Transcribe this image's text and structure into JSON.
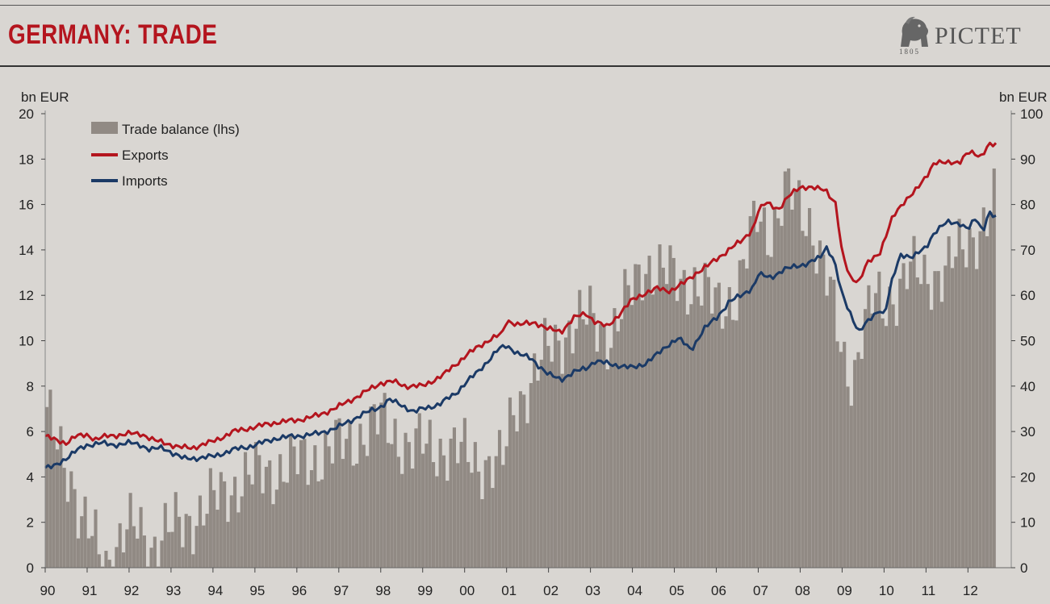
{
  "header": {
    "title": "GERMANY: TRADE",
    "logo_text": "PICTET",
    "logo_year": "1805"
  },
  "chart_data": {
    "type": "bar",
    "title": "GERMANY: TRADE",
    "ylabel_left": "bn EUR",
    "ylabel_right": "bn EUR",
    "ylim_left": [
      0,
      20
    ],
    "ylim_right": [
      0,
      100
    ],
    "yticks_left": [
      "0",
      "2",
      "4",
      "6",
      "8",
      "10",
      "12",
      "14",
      "16",
      "18",
      "20"
    ],
    "yticks_right": [
      "0",
      "10",
      "20",
      "30",
      "40",
      "50",
      "60",
      "70",
      "80",
      "90",
      "100"
    ],
    "x_tick_labels": [
      "90",
      "91",
      "92",
      "93",
      "94",
      "95",
      "96",
      "97",
      "98",
      "99",
      "00",
      "01",
      "02",
      "03",
      "04",
      "05",
      "06",
      "07",
      "08",
      "09",
      "10",
      "11",
      "12"
    ],
    "x_start_year": 1990,
    "x_end_year": 2012.667,
    "grid": false,
    "legend_position": "top-left",
    "legend": [
      {
        "label": "Trade balance (lhs)",
        "type": "bar",
        "color": "#918a84"
      },
      {
        "label": "Exports",
        "type": "line",
        "color": "#b4151e"
      },
      {
        "label": "Imports",
        "type": "line",
        "color": "#1b3a66"
      }
    ],
    "series": [
      {
        "name": "Trade balance (lhs)",
        "type": "bar",
        "axis": "left",
        "color": "#918a84",
        "frequency": "monthly",
        "anchors": [
          [
            1990.0,
            6.5
          ],
          [
            1990.3,
            5.5
          ],
          [
            1990.6,
            4.0
          ],
          [
            1990.8,
            2.0
          ],
          [
            1991.0,
            1.5
          ],
          [
            1991.2,
            1.0
          ],
          [
            1991.35,
            0.2
          ],
          [
            1991.6,
            0.8
          ],
          [
            1991.9,
            1.5
          ],
          [
            1992.2,
            1.8
          ],
          [
            1992.5,
            1.0
          ],
          [
            1992.9,
            1.6
          ],
          [
            1993.3,
            2.0
          ],
          [
            1993.8,
            2.6
          ],
          [
            1994.3,
            3.4
          ],
          [
            1994.8,
            4.0
          ],
          [
            1995.3,
            4.2
          ],
          [
            1995.8,
            4.5
          ],
          [
            1996.3,
            4.8
          ],
          [
            1996.8,
            5.2
          ],
          [
            1997.3,
            5.6
          ],
          [
            1997.8,
            6.2
          ],
          [
            1998.0,
            6.5
          ],
          [
            1998.3,
            6.0
          ],
          [
            1998.7,
            5.2
          ],
          [
            1999.0,
            5.4
          ],
          [
            1999.5,
            5.3
          ],
          [
            2000.0,
            5.0
          ],
          [
            2000.5,
            4.6
          ],
          [
            2000.9,
            4.5
          ],
          [
            2001.2,
            7.2
          ],
          [
            2001.6,
            8.2
          ],
          [
            2002.0,
            9.6
          ],
          [
            2002.5,
            10.5
          ],
          [
            2003.0,
            11.0
          ],
          [
            2003.5,
            10.2
          ],
          [
            2004.0,
            12.2
          ],
          [
            2004.3,
            13.5
          ],
          [
            2004.6,
            13.0
          ],
          [
            2005.0,
            12.8
          ],
          [
            2005.5,
            12.5
          ],
          [
            2006.0,
            11.6
          ],
          [
            2006.5,
            12.0
          ],
          [
            2007.0,
            15.5
          ],
          [
            2007.3,
            14.8
          ],
          [
            2007.7,
            16.6
          ],
          [
            2008.0,
            15.8
          ],
          [
            2008.3,
            15.2
          ],
          [
            2008.7,
            12.5
          ],
          [
            2008.9,
            10.5
          ],
          [
            2009.1,
            8.8
          ],
          [
            2009.3,
            8.5
          ],
          [
            2009.5,
            10.5
          ],
          [
            2009.8,
            11.8
          ],
          [
            2010.0,
            11.3
          ],
          [
            2010.3,
            12.2
          ],
          [
            2010.6,
            13.2
          ],
          [
            2011.0,
            12.6
          ],
          [
            2011.5,
            13.3
          ],
          [
            2011.9,
            13.8
          ],
          [
            2012.3,
            15.0
          ],
          [
            2012.667,
            16.0
          ]
        ],
        "notes": "Monthly values with month-to-month volatility around the listed trend points."
      },
      {
        "name": "Exports",
        "type": "line",
        "axis": "right",
        "color": "#b4151e",
        "points": [
          [
            1990.0,
            29.0
          ],
          [
            1990.2,
            28.2
          ],
          [
            1990.5,
            27.5
          ],
          [
            1990.7,
            28.8
          ],
          [
            1991.0,
            29.3
          ],
          [
            1991.2,
            28.3
          ],
          [
            1991.5,
            29.0
          ],
          [
            1992.0,
            29.5
          ],
          [
            1992.3,
            29.5
          ],
          [
            1992.6,
            28.0
          ],
          [
            1992.9,
            27.4
          ],
          [
            1993.2,
            26.5
          ],
          [
            1993.5,
            26.4
          ],
          [
            1994.0,
            27.8
          ],
          [
            1994.5,
            30.0
          ],
          [
            1995.0,
            31.0
          ],
          [
            1995.5,
            32.0
          ],
          [
            1996.0,
            32.5
          ],
          [
            1996.5,
            33.5
          ],
          [
            1997.0,
            35.5
          ],
          [
            1997.5,
            38.0
          ],
          [
            1998.0,
            40.7
          ],
          [
            1998.3,
            41.0
          ],
          [
            1998.6,
            40.0
          ],
          [
            1999.0,
            40.0
          ],
          [
            1999.5,
            42.5
          ],
          [
            2000.0,
            46.5
          ],
          [
            2000.3,
            48.5
          ],
          [
            2000.6,
            50.3
          ],
          [
            2000.9,
            51.5
          ],
          [
            2001.0,
            54.5
          ],
          [
            2001.3,
            53.5
          ],
          [
            2001.7,
            54.0
          ],
          [
            2002.0,
            52.5
          ],
          [
            2002.3,
            52.0
          ],
          [
            2002.6,
            55.0
          ],
          [
            2002.9,
            56.0
          ],
          [
            2003.1,
            54.3
          ],
          [
            2003.4,
            53.0
          ],
          [
            2003.7,
            56.0
          ],
          [
            2004.0,
            59.0
          ],
          [
            2004.3,
            60.5
          ],
          [
            2004.6,
            61.5
          ],
          [
            2004.9,
            61.0
          ],
          [
            2005.2,
            62.5
          ],
          [
            2005.5,
            64.8
          ],
          [
            2005.8,
            66.5
          ],
          [
            2006.0,
            68.0
          ],
          [
            2006.3,
            70.0
          ],
          [
            2006.6,
            72.0
          ],
          [
            2006.9,
            75.0
          ],
          [
            2007.0,
            78.5
          ],
          [
            2007.2,
            80.5
          ],
          [
            2007.5,
            79.0
          ],
          [
            2007.8,
            82.5
          ],
          [
            2008.0,
            84.0
          ],
          [
            2008.3,
            83.5
          ],
          [
            2008.6,
            83.5
          ],
          [
            2008.85,
            80.0
          ],
          [
            2009.0,
            69.0
          ],
          [
            2009.2,
            64.0
          ],
          [
            2009.4,
            63.0
          ],
          [
            2009.6,
            67.0
          ],
          [
            2009.9,
            69.5
          ],
          [
            2010.0,
            72.0
          ],
          [
            2010.2,
            77.0
          ],
          [
            2010.5,
            81.0
          ],
          [
            2010.8,
            83.5
          ],
          [
            2011.0,
            86.0
          ],
          [
            2011.2,
            89.5
          ],
          [
            2011.5,
            89.0
          ],
          [
            2011.8,
            89.5
          ],
          [
            2012.0,
            91.5
          ],
          [
            2012.3,
            90.5
          ],
          [
            2012.5,
            93.5
          ],
          [
            2012.667,
            93.0
          ]
        ]
      },
      {
        "name": "Imports",
        "type": "line",
        "axis": "right",
        "color": "#1b3a66",
        "points": [
          [
            1990.0,
            22.0
          ],
          [
            1990.2,
            22.2
          ],
          [
            1990.4,
            23.5
          ],
          [
            1990.7,
            25.5
          ],
          [
            1991.0,
            27.0
          ],
          [
            1991.3,
            27.5
          ],
          [
            1991.6,
            27.0
          ],
          [
            1992.0,
            27.5
          ],
          [
            1992.3,
            27.0
          ],
          [
            1992.5,
            26.0
          ],
          [
            1992.8,
            26.4
          ],
          [
            1993.0,
            25.5
          ],
          [
            1993.3,
            24.0
          ],
          [
            1993.7,
            24.2
          ],
          [
            1994.0,
            24.5
          ],
          [
            1994.5,
            26.0
          ],
          [
            1995.0,
            27.0
          ],
          [
            1995.5,
            28.5
          ],
          [
            1996.0,
            29.0
          ],
          [
            1996.5,
            29.5
          ],
          [
            1997.0,
            31.0
          ],
          [
            1997.5,
            33.5
          ],
          [
            1998.0,
            35.5
          ],
          [
            1998.2,
            37.0
          ],
          [
            1998.5,
            35.8
          ],
          [
            1998.8,
            34.3
          ],
          [
            1999.0,
            35.0
          ],
          [
            1999.4,
            36.0
          ],
          [
            1999.8,
            38.5
          ],
          [
            2000.0,
            40.5
          ],
          [
            2000.3,
            43.0
          ],
          [
            2000.6,
            46.0
          ],
          [
            2000.8,
            48.0
          ],
          [
            2001.0,
            49.0
          ],
          [
            2001.3,
            47.0
          ],
          [
            2001.6,
            46.0
          ],
          [
            2002.0,
            42.5
          ],
          [
            2002.3,
            41.5
          ],
          [
            2002.6,
            43.0
          ],
          [
            2002.9,
            44.0
          ],
          [
            2003.1,
            45.5
          ],
          [
            2003.4,
            45.0
          ],
          [
            2003.7,
            44.5
          ],
          [
            2004.0,
            44.0
          ],
          [
            2004.3,
            45.0
          ],
          [
            2004.6,
            47.0
          ],
          [
            2004.9,
            49.5
          ],
          [
            2005.1,
            50.5
          ],
          [
            2005.4,
            48.0
          ],
          [
            2005.7,
            52.5
          ],
          [
            2006.0,
            55.0
          ],
          [
            2006.3,
            58.5
          ],
          [
            2006.6,
            60.0
          ],
          [
            2006.9,
            62.0
          ],
          [
            2007.0,
            64.5
          ],
          [
            2007.3,
            64.0
          ],
          [
            2007.6,
            65.5
          ],
          [
            2007.9,
            66.5
          ],
          [
            2008.2,
            67.0
          ],
          [
            2008.5,
            68.5
          ],
          [
            2008.6,
            71.0
          ],
          [
            2008.8,
            68.0
          ],
          [
            2009.0,
            60.0
          ],
          [
            2009.2,
            56.0
          ],
          [
            2009.4,
            52.0
          ],
          [
            2009.6,
            54.0
          ],
          [
            2009.9,
            57.0
          ],
          [
            2010.0,
            55.5
          ],
          [
            2010.2,
            63.5
          ],
          [
            2010.4,
            69.0
          ],
          [
            2010.7,
            68.5
          ],
          [
            2011.0,
            70.5
          ],
          [
            2011.2,
            74.0
          ],
          [
            2011.5,
            76.0
          ],
          [
            2011.8,
            76.0
          ],
          [
            2012.0,
            74.5
          ],
          [
            2012.2,
            77.0
          ],
          [
            2012.35,
            74.0
          ],
          [
            2012.5,
            78.5
          ],
          [
            2012.667,
            77.0
          ]
        ]
      }
    ]
  }
}
